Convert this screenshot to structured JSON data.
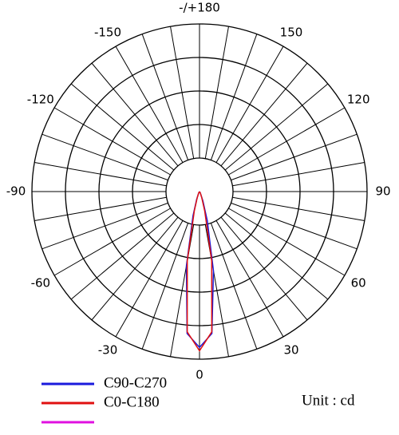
{
  "chart_data": {
    "type": "polar",
    "unit_label": "Unit : cd",
    "rlim": [
      0,
      100
    ],
    "rticks": [
      20,
      40,
      60,
      80,
      100
    ],
    "thetaticks": [
      0,
      30,
      60,
      90,
      120,
      150,
      {
        "value": 180,
        "label": "-/+180"
      },
      -150,
      -120,
      -90,
      -60,
      -30
    ],
    "thetagrid": [
      -170,
      -160,
      -150,
      -140,
      -130,
      -120,
      -110,
      -100,
      -90,
      -80,
      -70,
      -60,
      -50,
      -40,
      -30,
      -20,
      -10,
      0,
      10,
      20,
      30,
      40,
      50,
      60,
      70,
      80,
      90,
      100,
      110,
      120,
      130,
      140,
      150,
      160,
      170,
      180
    ],
    "x": [
      -90,
      -60,
      -30,
      -20,
      -15,
      -10,
      -5,
      0,
      5,
      10,
      15,
      20,
      30,
      60,
      90
    ],
    "series": [
      {
        "name": "C90-C270",
        "color": "#1a1adc",
        "values": [
          0,
          0,
          1,
          5,
          15,
          45,
          85,
          93,
          85,
          48,
          18,
          6,
          1,
          0,
          0
        ]
      },
      {
        "name": "C0-C180",
        "color": "#e01010",
        "values": [
          0,
          0,
          1,
          4,
          12,
          42,
          84,
          95,
          84,
          42,
          12,
          4,
          1,
          0,
          0
        ]
      },
      {
        "name": null,
        "color": "#e010e0",
        "values": [
          null,
          null,
          null,
          null,
          null,
          null,
          null,
          null,
          null,
          null,
          null,
          null,
          null,
          null,
          null
        ]
      }
    ]
  }
}
